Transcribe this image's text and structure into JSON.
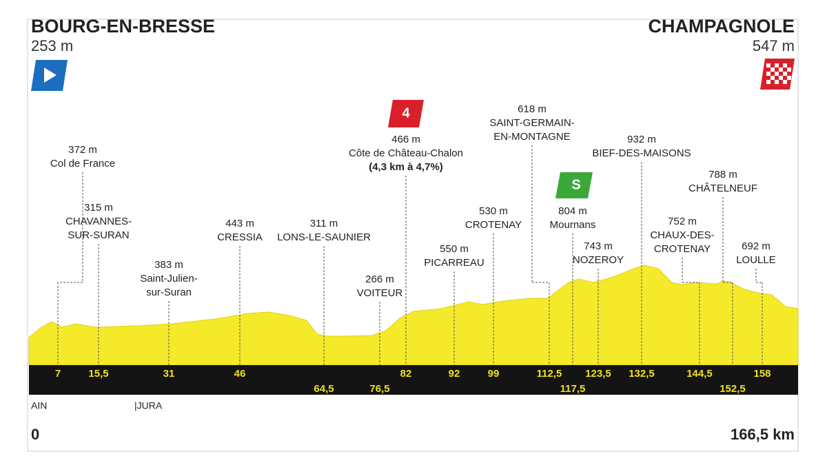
{
  "start": {
    "name": "BOURG-EN-BRESSE",
    "altitude": "253 m"
  },
  "finish": {
    "name": "CHAMPAGNOLE",
    "altitude": "547 m"
  },
  "climb_category": "4",
  "sprint_icon": "S",
  "waypoints": [
    {
      "km": "7",
      "altitude": "372 m",
      "label": [
        "Col de France"
      ]
    },
    {
      "km": "15,5",
      "altitude": "315 m",
      "label": [
        "CHAVANNES-",
        "SUR-SURAN"
      ]
    },
    {
      "km": "31",
      "altitude": "383 m",
      "label": [
        "Saint-Julien-",
        "sur-Suran"
      ]
    },
    {
      "km": "46",
      "altitude": "443 m",
      "label": [
        "CRESSIA"
      ]
    },
    {
      "km": "64,5",
      "altitude": "311 m",
      "label": [
        "LONS-LE-SAUNIER"
      ]
    },
    {
      "km": "76,5",
      "altitude": "266 m",
      "label": [
        "VOITEUR"
      ]
    },
    {
      "km": "82",
      "altitude": "466 m",
      "label": [
        "Côte de Château-Chalon"
      ],
      "detail": "(4,3 km à 4,7%)"
    },
    {
      "km": "92",
      "altitude": "550 m",
      "label": [
        "PICARREAU"
      ]
    },
    {
      "km": "99",
      "altitude": "530 m",
      "label": [
        "CROTENAY"
      ]
    },
    {
      "km": "112,5",
      "altitude": "618 m",
      "label": [
        "SAINT-GERMAIN-",
        "EN-MONTAGNE"
      ]
    },
    {
      "km": "117,5",
      "altitude": "804 m",
      "label": [
        "Mournans"
      ]
    },
    {
      "km": "123,5",
      "altitude": "743 m",
      "label": [
        "NOZEROY"
      ]
    },
    {
      "km": "132,5",
      "altitude": "932 m",
      "label": [
        "BIEF-DES-MAISONS"
      ]
    },
    {
      "km": "144,5",
      "altitude": "752 m",
      "label": [
        "CHAUX-DES-",
        "CROTENAY"
      ]
    },
    {
      "km": "152,5",
      "altitude": "788 m",
      "label": [
        "CHÂTELNEUF"
      ]
    },
    {
      "km": "158",
      "altitude": "692 m",
      "label": [
        "LOULLE"
      ]
    }
  ],
  "regions": [
    "AIN",
    "|JURA"
  ],
  "distance_start": "0",
  "distance_end": "166,5 km"
}
